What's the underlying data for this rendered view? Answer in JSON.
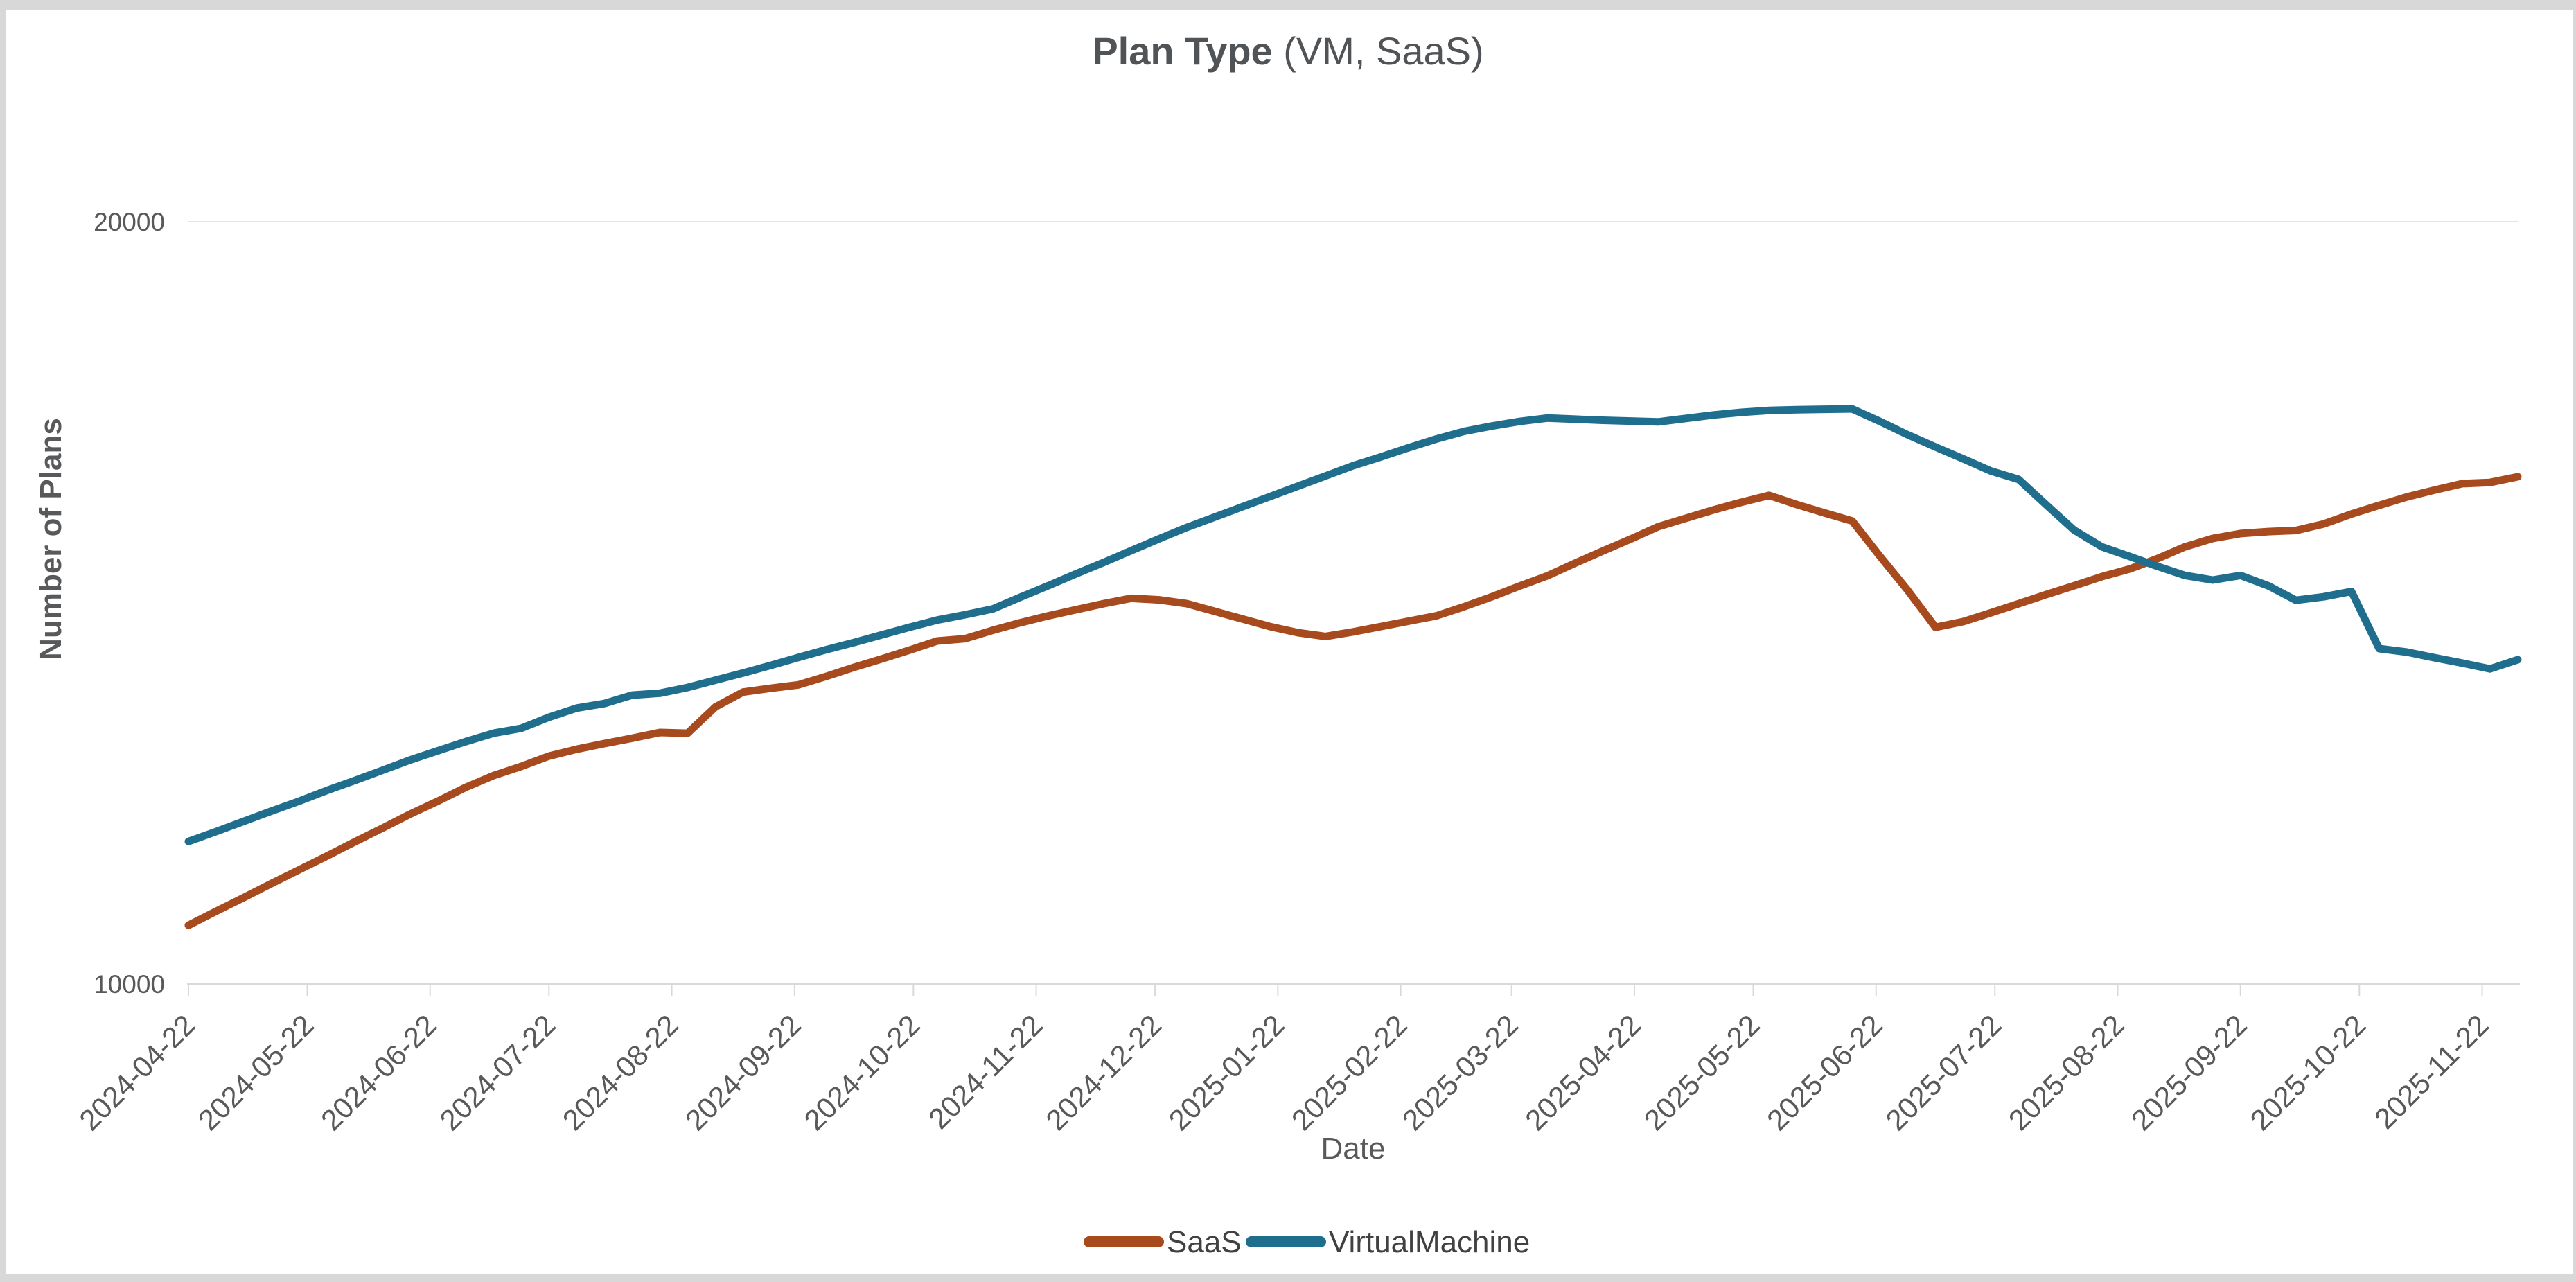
{
  "window": {
    "border_color": "#D8D8D8",
    "canvas_background": "#FFFFFF"
  },
  "title": {
    "main": "Plan Type",
    "suffix": " (VM, SaaS)",
    "color": "#515457"
  },
  "axes": {
    "x": {
      "label": "Date",
      "label_color": "#58595B",
      "tick_color": "#58595B"
    },
    "y": {
      "label": "Number of Plans",
      "label_color": "#58595B",
      "ticks": [
        {
          "value": 20000,
          "label": "20000"
        },
        {
          "value": 10000,
          "label": "10000"
        }
      ]
    }
  },
  "legend": [
    {
      "label": "SaaS",
      "color": "#A74A1D"
    },
    {
      "label": "VirtualMachine",
      "color": "#1F6E8D"
    }
  ],
  "chart_data": {
    "type": "line",
    "title": "Plan Type (VM, SaaS)",
    "xlabel": "Date",
    "ylabel": "Number of Plans",
    "ylim": [
      10000,
      20000
    ],
    "grid_values": [
      20000
    ],
    "legend_position": "bottom",
    "xticks": [
      "2024-04-22",
      "2024-05-22",
      "2024-06-22",
      "2024-07-22",
      "2024-08-22",
      "2024-09-22",
      "2024-10-22",
      "2024-11-22",
      "2024-12-22",
      "2025-01-22",
      "2025-02-22",
      "2025-03-22",
      "2025-04-22",
      "2025-05-22",
      "2025-06-22",
      "2025-07-22",
      "2025-08-22",
      "2025-09-22",
      "2025-10-22",
      "2025-11-22"
    ],
    "x": [
      "2024-04-22",
      "2024-04-29",
      "2024-05-06",
      "2024-05-13",
      "2024-05-20",
      "2024-05-27",
      "2024-06-03",
      "2024-06-10",
      "2024-06-17",
      "2024-06-24",
      "2024-07-01",
      "2024-07-08",
      "2024-07-15",
      "2024-07-22",
      "2024-07-29",
      "2024-08-05",
      "2024-08-12",
      "2024-08-19",
      "2024-08-26",
      "2024-09-02",
      "2024-09-09",
      "2024-09-16",
      "2024-09-23",
      "2024-09-30",
      "2024-10-07",
      "2024-10-14",
      "2024-10-21",
      "2024-10-28",
      "2024-11-04",
      "2024-11-11",
      "2024-11-18",
      "2024-11-25",
      "2024-12-02",
      "2024-12-09",
      "2024-12-16",
      "2024-12-23",
      "2024-12-30",
      "2025-01-06",
      "2025-01-13",
      "2025-01-20",
      "2025-01-27",
      "2025-02-03",
      "2025-02-10",
      "2025-02-17",
      "2025-02-24",
      "2025-03-03",
      "2025-03-10",
      "2025-03-17",
      "2025-03-24",
      "2025-03-31",
      "2025-04-07",
      "2025-04-14",
      "2025-04-21",
      "2025-04-28",
      "2025-05-05",
      "2025-05-12",
      "2025-05-19",
      "2025-05-26",
      "2025-06-02",
      "2025-06-09",
      "2025-06-16",
      "2025-06-23",
      "2025-06-30",
      "2025-07-07",
      "2025-07-14",
      "2025-07-21",
      "2025-07-28",
      "2025-08-04",
      "2025-08-11",
      "2025-08-18",
      "2025-08-25",
      "2025-09-01",
      "2025-09-08",
      "2025-09-15",
      "2025-09-22",
      "2025-09-29",
      "2025-10-06",
      "2025-10-13",
      "2025-10-20",
      "2025-10-27",
      "2025-11-03",
      "2025-11-10",
      "2025-11-17",
      "2025-11-24",
      "2025-12-01"
    ],
    "series": [
      {
        "name": "SaaS",
        "color": "#A74A1D",
        "values": [
          10770,
          10955,
          11135,
          11320,
          11500,
          11680,
          11865,
          12045,
          12230,
          12400,
          12580,
          12735,
          12855,
          12990,
          13080,
          13155,
          13225,
          13300,
          13290,
          13635,
          13830,
          13880,
          13925,
          14035,
          14155,
          14265,
          14380,
          14500,
          14530,
          14640,
          14740,
          14830,
          14910,
          14990,
          15060,
          15040,
          14990,
          14890,
          14790,
          14690,
          14610,
          14560,
          14620,
          14690,
          14760,
          14830,
          14950,
          15080,
          15220,
          15355,
          15520,
          15680,
          15835,
          16000,
          16110,
          16220,
          16320,
          16410,
          16290,
          16180,
          16075,
          15610,
          15165,
          14680,
          14755,
          14870,
          14990,
          15110,
          15225,
          15345,
          15445,
          15580,
          15735,
          15845,
          15910,
          15935,
          15950,
          16035,
          16165,
          16280,
          16390,
          16480,
          16565,
          16580,
          16655
        ]
      },
      {
        "name": "VirtualMachine",
        "color": "#1F6E8D",
        "values": [
          11870,
          12000,
          12135,
          12270,
          12400,
          12540,
          12670,
          12805,
          12940,
          13060,
          13180,
          13290,
          13355,
          13500,
          13620,
          13680,
          13790,
          13815,
          13890,
          13985,
          14080,
          14180,
          14285,
          14385,
          14480,
          14580,
          14680,
          14775,
          14845,
          14920,
          15075,
          15225,
          15380,
          15530,
          15685,
          15840,
          15990,
          16125,
          16260,
          16395,
          16530,
          16665,
          16800,
          16915,
          17035,
          17150,
          17250,
          17320,
          17380,
          17425,
          17410,
          17395,
          17385,
          17375,
          17420,
          17465,
          17500,
          17525,
          17535,
          17540,
          17545,
          17380,
          17205,
          17045,
          16890,
          16730,
          16620,
          16285,
          15955,
          15735,
          15610,
          15480,
          15360,
          15300,
          15360,
          15225,
          15035,
          15080,
          15150,
          14400,
          14355,
          14280,
          14210,
          14135,
          14255
        ]
      }
    ]
  }
}
